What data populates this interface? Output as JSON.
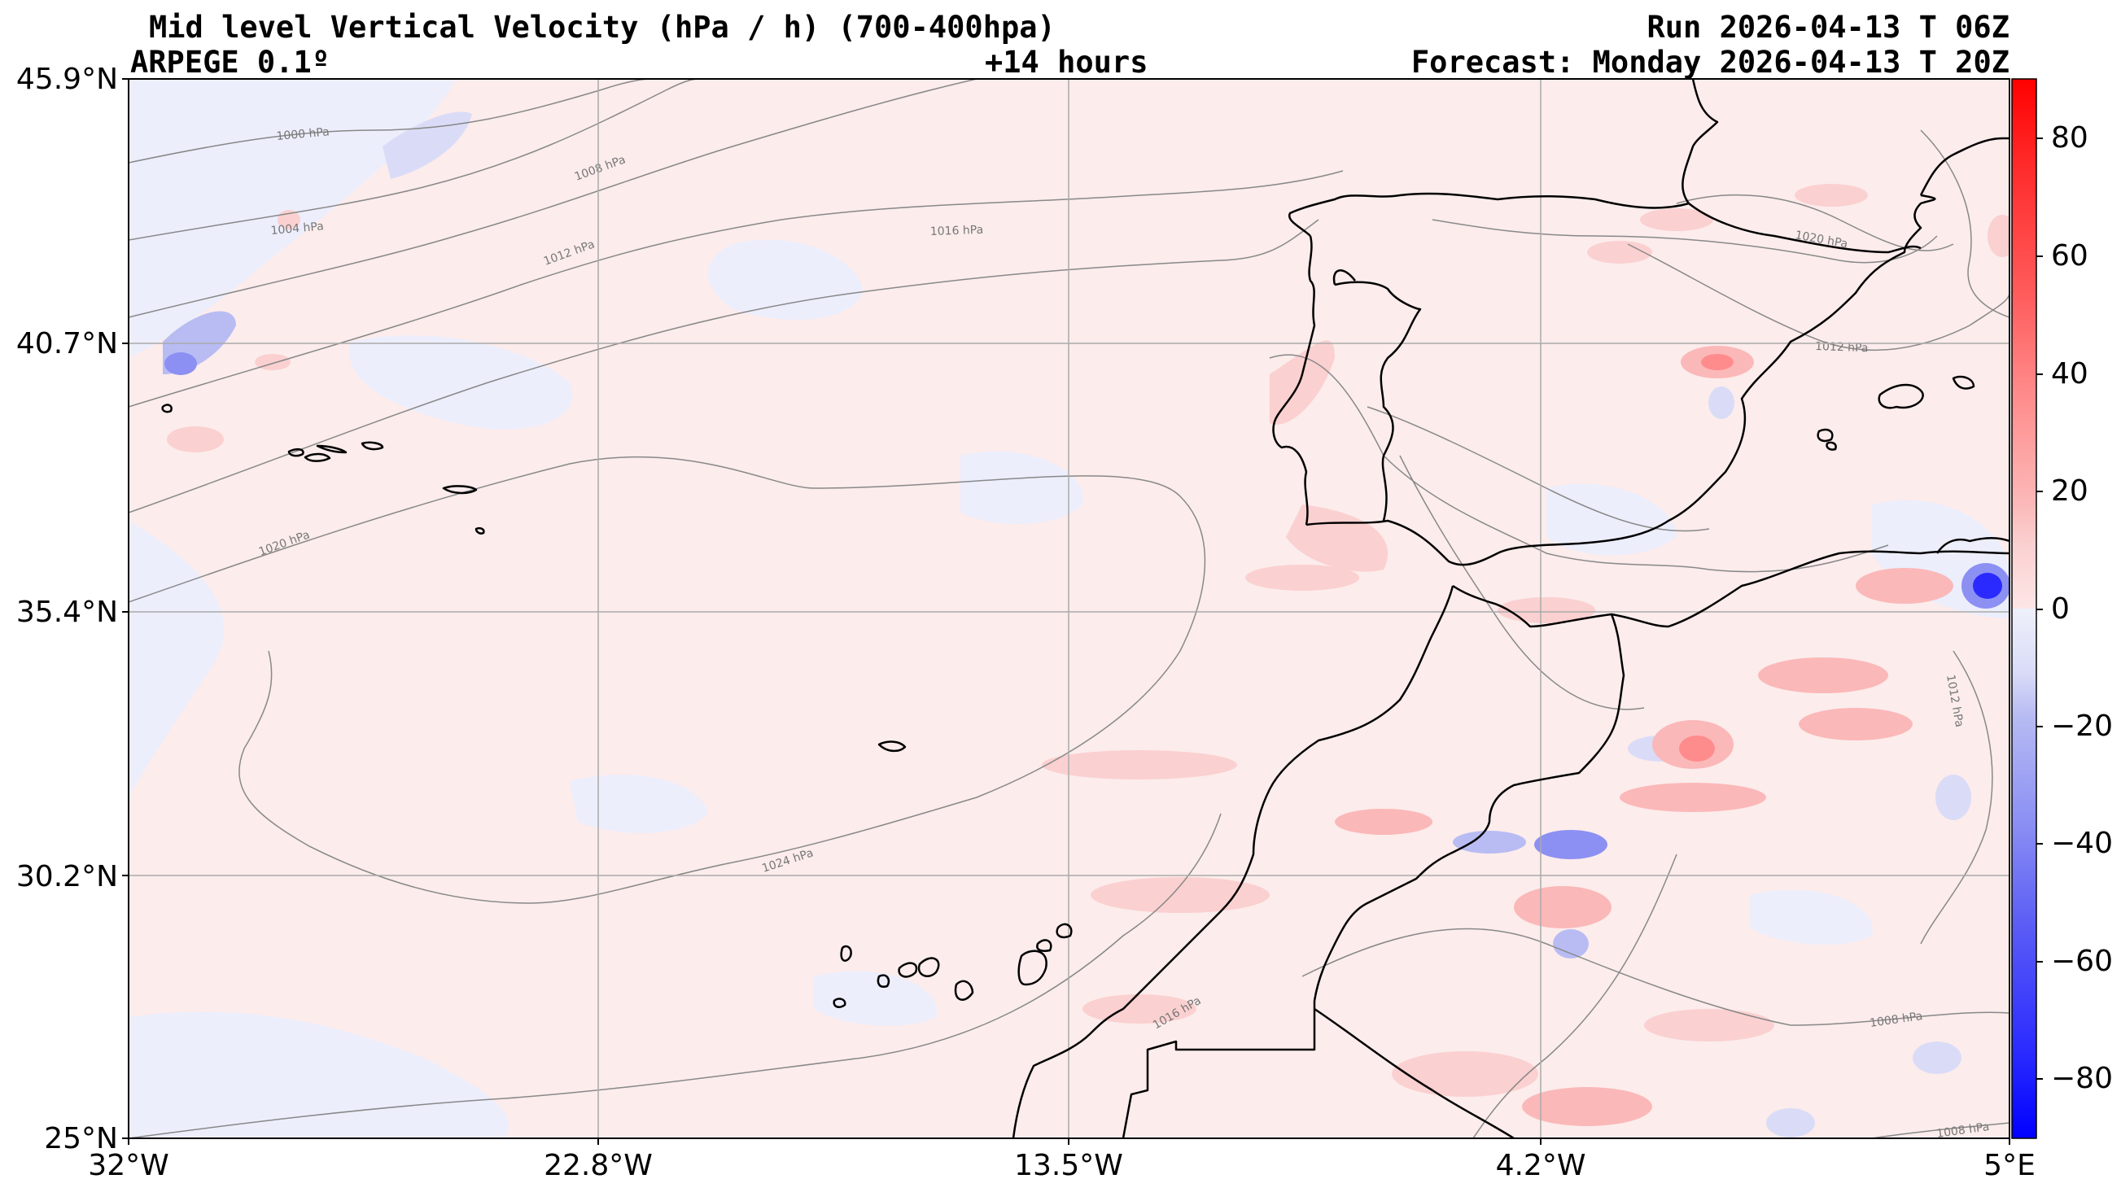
{
  "header": {
    "title": "Mid level Vertical Velocity (hPa / h)  (700-400hpa)",
    "model": "ARPEGE 0.1º",
    "lead": "+14 hours",
    "run": "Run 2026-04-13 T 06Z",
    "valid": "Forecast: Monday 2026-04-13 T 20Z"
  },
  "axes": {
    "lat_labels": [
      "45.9°N",
      "40.7°N",
      "35.4°N",
      "30.2°N",
      "25°N"
    ],
    "lon_labels": [
      "32°W",
      "22.8°W",
      "13.5°W",
      "4.2°W",
      "5°E"
    ]
  },
  "colorbar": {
    "labels": [
      "80",
      "60",
      "40",
      "20",
      "0",
      "−20",
      "−40",
      "−60",
      "−80"
    ],
    "range": [
      -90,
      90
    ],
    "colors": {
      "strong_red": "#ff0000",
      "light_red": "#fce8e8",
      "neutral": "#ffffff",
      "light_blue": "#eceefc",
      "strong_blue": "#0000ff"
    }
  },
  "isobars": {
    "labels": [
      "1000 hPa",
      "1004 hPa",
      "1008 hPa",
      "1012 hPa",
      "1016 hPa",
      "1020 hPa",
      "1024 hPa",
      "1020 hPa",
      "1012 hPa",
      "1012 hPa",
      "1016 hPa",
      "1008 hPa",
      "1008 hPa"
    ]
  }
}
